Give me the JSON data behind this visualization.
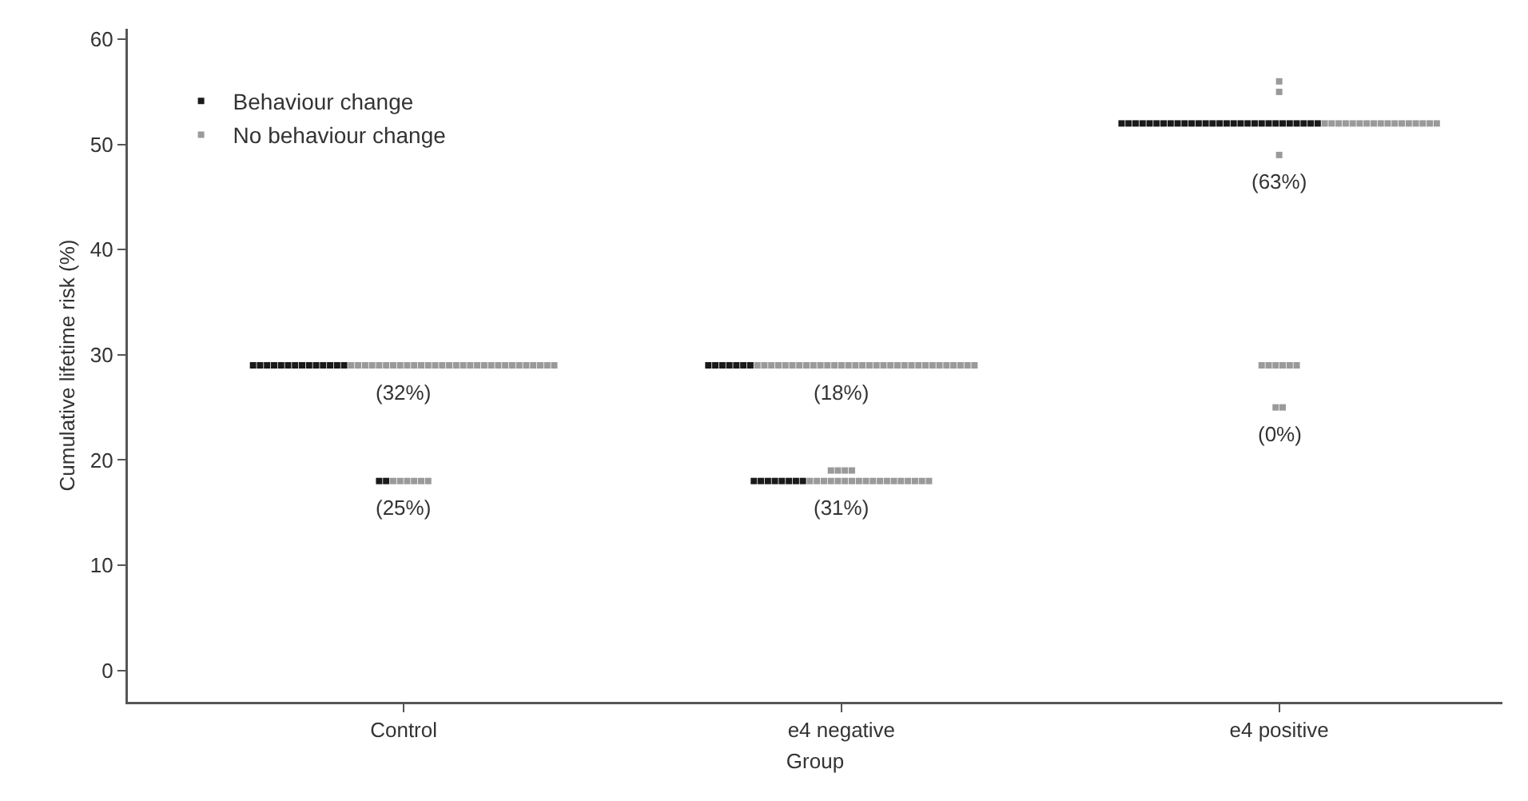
{
  "chart_data": {
    "type": "scatter",
    "xlabel": "Group",
    "ylabel": "Cumulative lifetime risk (%)",
    "categories": [
      "Control",
      "e4 negative",
      "e4 positive"
    ],
    "ylim": [
      -3,
      61
    ],
    "yticks": [
      0,
      10,
      20,
      30,
      40,
      50,
      60
    ],
    "grid": false,
    "legend": "top left",
    "marker": "square",
    "series": [
      {
        "name": "Behaviour change",
        "color": "#1a1a1a",
        "x": [
          "Control",
          "Control",
          "Control",
          "Control",
          "Control",
          "Control",
          "Control",
          "Control",
          "Control",
          "Control",
          "Control",
          "Control",
          "Control",
          "Control",
          "Control",
          "Control",
          "e4 negative",
          "e4 negative",
          "e4 negative",
          "e4 negative",
          "e4 negative",
          "e4 negative",
          "e4 negative",
          "e4 negative",
          "e4 negative",
          "e4 negative",
          "e4 negative",
          "e4 negative",
          "e4 negative",
          "e4 negative",
          "e4 negative",
          "e4 positive",
          "e4 positive",
          "e4 positive",
          "e4 positive",
          "e4 positive",
          "e4 positive",
          "e4 positive",
          "e4 positive",
          "e4 positive",
          "e4 positive",
          "e4 positive",
          "e4 positive",
          "e4 positive",
          "e4 positive",
          "e4 positive",
          "e4 positive",
          "e4 positive",
          "e4 positive",
          "e4 positive",
          "e4 positive",
          "e4 positive",
          "e4 positive",
          "e4 positive",
          "e4 positive",
          "e4 positive",
          "e4 positive",
          "e4 positive",
          "e4 positive",
          "e4 positive"
        ],
        "values": [
          29,
          29,
          29,
          29,
          29,
          29,
          29,
          29,
          29,
          29,
          29,
          29,
          29,
          29,
          18,
          18,
          29,
          29,
          29,
          29,
          29,
          29,
          29,
          18,
          18,
          18,
          18,
          18,
          18,
          18,
          18,
          52,
          52,
          52,
          52,
          52,
          52,
          52,
          52,
          52,
          52,
          52,
          52,
          52,
          52,
          52,
          52,
          52,
          52,
          52,
          52,
          52,
          52,
          52,
          52,
          52,
          52,
          52,
          52,
          52
        ]
      },
      {
        "name": "No behaviour change",
        "color": "#9a9a9a",
        "x": [
          "Control",
          "Control",
          "Control",
          "Control",
          "Control",
          "Control",
          "Control",
          "Control",
          "Control",
          "Control",
          "Control",
          "Control",
          "Control",
          "Control",
          "Control",
          "Control",
          "Control",
          "Control",
          "Control",
          "Control",
          "Control",
          "Control",
          "Control",
          "Control",
          "Control",
          "Control",
          "Control",
          "Control",
          "Control",
          "Control",
          "Control",
          "Control",
          "Control",
          "Control",
          "Control",
          "Control",
          "e4 negative",
          "e4 negative",
          "e4 negative",
          "e4 negative",
          "e4 negative",
          "e4 negative",
          "e4 negative",
          "e4 negative",
          "e4 negative",
          "e4 negative",
          "e4 negative",
          "e4 negative",
          "e4 negative",
          "e4 negative",
          "e4 negative",
          "e4 negative",
          "e4 negative",
          "e4 negative",
          "e4 negative",
          "e4 negative",
          "e4 negative",
          "e4 negative",
          "e4 negative",
          "e4 negative",
          "e4 negative",
          "e4 negative",
          "e4 negative",
          "e4 negative",
          "e4 negative",
          "e4 negative",
          "e4 negative",
          "e4 negative",
          "e4 negative",
          "e4 negative",
          "e4 negative",
          "e4 negative",
          "e4 negative",
          "e4 negative",
          "e4 negative",
          "e4 negative",
          "e4 negative",
          "e4 negative",
          "e4 negative",
          "e4 negative",
          "e4 negative",
          "e4 negative",
          "e4 negative",
          "e4 negative",
          "e4 negative",
          "e4 negative",
          "e4 negative",
          "e4 negative",
          "e4 negative",
          "e4 negative",
          "e4 positive",
          "e4 positive",
          "e4 positive",
          "e4 positive",
          "e4 positive",
          "e4 positive",
          "e4 positive",
          "e4 positive",
          "e4 positive",
          "e4 positive",
          "e4 positive",
          "e4 positive",
          "e4 positive",
          "e4 positive",
          "e4 positive",
          "e4 positive",
          "e4 positive",
          "e4 positive",
          "e4 positive",
          "e4 positive",
          "e4 positive",
          "e4 positive",
          "e4 positive",
          "e4 positive",
          "e4 positive",
          "e4 positive",
          "e4 positive",
          "e4 positive"
        ],
        "values": [
          29,
          29,
          29,
          29,
          29,
          29,
          29,
          29,
          29,
          29,
          29,
          29,
          29,
          29,
          29,
          29,
          29,
          29,
          29,
          29,
          29,
          29,
          29,
          29,
          29,
          29,
          29,
          29,
          29,
          29,
          18,
          18,
          18,
          18,
          18,
          18,
          29,
          29,
          29,
          29,
          29,
          29,
          29,
          29,
          29,
          29,
          29,
          29,
          29,
          29,
          29,
          29,
          29,
          29,
          29,
          29,
          29,
          29,
          29,
          29,
          29,
          29,
          29,
          29,
          29,
          29,
          29,
          29,
          18,
          18,
          18,
          18,
          18,
          18,
          18,
          18,
          18,
          18,
          18,
          18,
          18,
          18,
          18,
          18,
          18,
          18,
          19,
          19,
          19,
          19,
          52,
          52,
          52,
          52,
          52,
          52,
          52,
          52,
          52,
          52,
          52,
          52,
          52,
          52,
          52,
          52,
          52,
          56,
          55,
          49,
          29,
          29,
          29,
          29,
          29,
          29,
          25,
          25
        ]
      }
    ],
    "annotations": [
      {
        "text": "(32%)",
        "x": "Control",
        "y": 29
      },
      {
        "text": "(25%)",
        "x": "Control",
        "y": 18
      },
      {
        "text": "(18%)",
        "x": "e4 negative",
        "y": 29
      },
      {
        "text": "(31%)",
        "x": "e4 negative",
        "y": 18
      },
      {
        "text": "(63%)",
        "x": "e4 positive",
        "y": 49
      },
      {
        "text": "(0%)",
        "x": "e4 positive",
        "y": 25
      }
    ]
  }
}
